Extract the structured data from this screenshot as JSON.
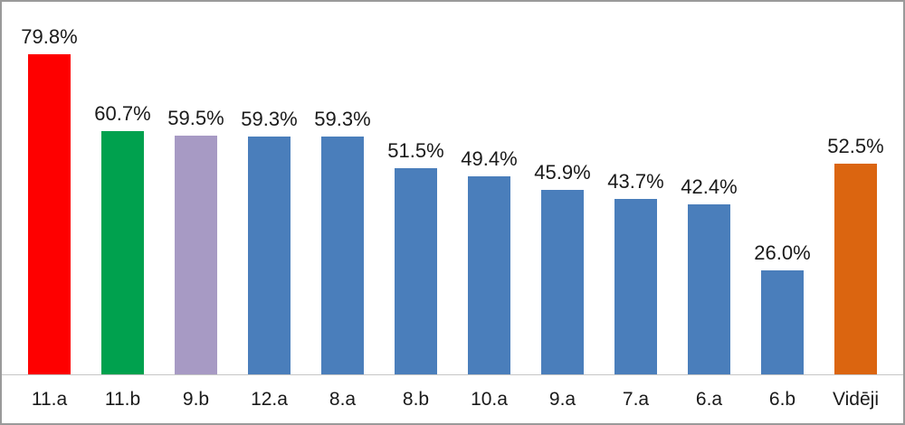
{
  "chart_data": {
    "type": "bar",
    "categories": [
      "11.a",
      "11.b",
      "9.b",
      "12.a",
      "8.a",
      "8.b",
      "10.a",
      "9.a",
      "7.a",
      "6.a",
      "6.b",
      "Vidēji"
    ],
    "values": [
      79.8,
      60.7,
      59.5,
      59.3,
      59.3,
      51.5,
      49.4,
      45.9,
      43.7,
      42.4,
      26.0,
      52.5
    ],
    "data_labels": [
      "79.8%",
      "60.7%",
      "59.5%",
      "59.3%",
      "59.3%",
      "51.5%",
      "49.4%",
      "45.9%",
      "43.7%",
      "42.4%",
      "26.0%",
      "52.5%"
    ],
    "bar_colors": [
      "#fe0000",
      "#00a14e",
      "#a79ac4",
      "#4a7ebb",
      "#4a7ebb",
      "#4a7ebb",
      "#4a7ebb",
      "#4a7ebb",
      "#4a7ebb",
      "#4a7ebb",
      "#4a7ebb",
      "#db6510"
    ],
    "title": "",
    "xlabel": "",
    "ylabel": "",
    "ylim": [
      0,
      90
    ],
    "grid": false,
    "legend": false,
    "axis_line_color": "#c6c6c6",
    "text_color": "#1a1a1a",
    "background_color": "#ffffff",
    "frame_border_color": "#9a9a9a"
  }
}
